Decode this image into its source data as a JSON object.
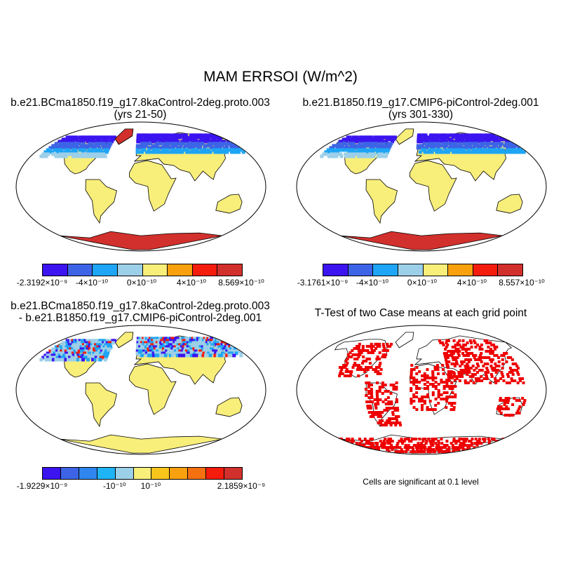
{
  "title": "MAM ERRSOI (W/m^2)",
  "panels": {
    "top_left": {
      "title_line1": "b.e21.BCma1850.f19_g17.8kaControl-2deg.proto.003",
      "title_line2": "(yrs 21-50)",
      "colorbar": {
        "colors": [
          "#3b14f0",
          "#3d64e6",
          "#1ea5f5",
          "#9ccfe8",
          "#f8ee7a",
          "#f8a00e",
          "#f41c0c",
          "#d2302c"
        ],
        "labels": [
          "-2.3192×10⁻⁹",
          "-4×10⁻¹⁰",
          "0×10⁻¹⁰",
          "4×10⁻¹⁰",
          "8.569×10⁻¹⁰"
        ]
      }
    },
    "top_right": {
      "title_line1": "b.e21.B1850.f19_g17.CMIP6-piControl-2deg.001",
      "title_line2": "(yrs 301-330)",
      "colorbar": {
        "colors": [
          "#3b14f0",
          "#3d64e6",
          "#1ea5f5",
          "#9ccfe8",
          "#f8ee7a",
          "#f8a00e",
          "#f41c0c",
          "#d2302c"
        ],
        "labels": [
          "-3.1761×10⁻⁹",
          "-4×10⁻¹⁰",
          "0×10⁻¹⁰",
          "4×10⁻¹⁰",
          "8.557×10⁻¹⁰"
        ]
      }
    },
    "bottom_left": {
      "title_line1": "b.e21.BCma1850.f19_g17.8kaControl-2deg.proto.003",
      "title_line2": "- b.e21.B1850.f19_g17.CMIP6-piControl-2deg.001",
      "colorbar": {
        "colors": [
          "#3b14f0",
          "#3d64e6",
          "#2f86ee",
          "#1eb4f5",
          "#9ccfe8",
          "#f8ee7a",
          "#f8c51c",
          "#f8a00e",
          "#f57010",
          "#f41c0c",
          "#d2302c"
        ],
        "labels": [
          "-1.9229×10⁻⁹",
          "-10⁻¹⁰",
          "10⁻¹⁰",
          "2.1859×10⁻⁹"
        ]
      }
    },
    "bottom_right": {
      "title": "T-Test of two Case means at each grid point",
      "note": "Cells are significant at 0.1 level",
      "sig_color": "#ee0000"
    }
  },
  "colors": {
    "land_neutral": "#f8ee7a",
    "ice_warm": "#d2302c",
    "cold_north": "#3b14f0",
    "outline": "#000000"
  }
}
